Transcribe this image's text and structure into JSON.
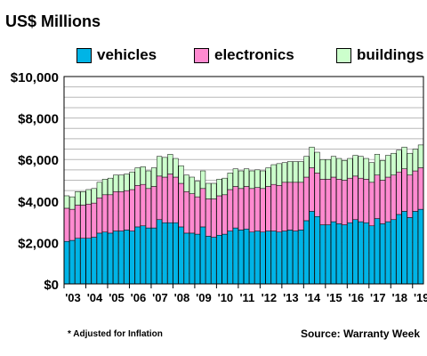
{
  "title": "US$ Millions",
  "legend": [
    {
      "key": "vehicles",
      "label": "vehicles",
      "color": "#00b4e6"
    },
    {
      "key": "electronics",
      "label": "electronics",
      "color": "#ff8ad0"
    },
    {
      "key": "buildings",
      "label": "buildings",
      "color": "#ccffcc"
    }
  ],
  "footnote": "* Adjusted for Inflation",
  "source": "Source: Warranty Week",
  "chart_data": {
    "type": "bar",
    "stacked": true,
    "title": "US$ Millions",
    "xlabel": "",
    "ylabel": "",
    "ylim": [
      0,
      10000
    ],
    "yticks": [
      0,
      2000,
      4000,
      6000,
      8000,
      10000
    ],
    "ytick_labels": [
      "$0",
      "$2,000",
      "$4,000",
      "$6,000",
      "$8,000",
      "$10,000"
    ],
    "grid": true,
    "legend_position": "top",
    "periods_per_year": 4,
    "year_labels": [
      "'03",
      "'04",
      "'05",
      "'06",
      "'07",
      "'08",
      "'09",
      "'10",
      "'11",
      "'12",
      "'13",
      "'14",
      "'15",
      "'16",
      "'17",
      "'18",
      "'19"
    ],
    "series": [
      {
        "name": "vehicles",
        "color": "#00b4e6",
        "values": [
          2050,
          2100,
          2200,
          2200,
          2200,
          2250,
          2450,
          2500,
          2450,
          2550,
          2550,
          2600,
          2550,
          2750,
          2800,
          2700,
          2700,
          3100,
          2950,
          2950,
          2950,
          2750,
          2450,
          2450,
          2400,
          2750,
          2300,
          2250,
          2350,
          2400,
          2550,
          2700,
          2600,
          2650,
          2500,
          2550,
          2500,
          2550,
          2550,
          2500,
          2550,
          2600,
          2550,
          2600,
          3050,
          3500,
          3250,
          2850,
          2850,
          3000,
          2900,
          2850,
          2950,
          3100,
          3000,
          2950,
          2800,
          3150,
          2900,
          3000,
          3100,
          3350,
          3500,
          3200,
          3500,
          3600
        ]
      },
      {
        "name": "electronics",
        "color": "#ff8ad0",
        "values": [
          1600,
          1500,
          1600,
          1600,
          1650,
          1650,
          1700,
          1800,
          1850,
          1900,
          1900,
          1900,
          2000,
          2000,
          2000,
          1900,
          2000,
          2100,
          2200,
          2350,
          2200,
          2100,
          2000,
          1900,
          1800,
          1850,
          1800,
          1850,
          1900,
          1900,
          2000,
          2000,
          2000,
          2050,
          2100,
          2100,
          2100,
          2150,
          2250,
          2250,
          2350,
          2300,
          2350,
          2300,
          2100,
          2100,
          2100,
          2200,
          2200,
          2150,
          2150,
          2150,
          2150,
          2100,
          2100,
          2100,
          2100,
          2100,
          2100,
          2150,
          2150,
          2050,
          2050,
          2050,
          1950,
          2000
        ]
      },
      {
        "name": "buildings",
        "color": "#ccffcc",
        "values": [
          600,
          600,
          650,
          650,
          700,
          700,
          750,
          750,
          800,
          800,
          800,
          800,
          850,
          850,
          850,
          850,
          900,
          950,
          950,
          950,
          900,
          850,
          800,
          800,
          750,
          850,
          750,
          750,
          800,
          800,
          800,
          850,
          850,
          850,
          850,
          850,
          850,
          900,
          950,
          1050,
          950,
          1000,
          1000,
          1000,
          1000,
          1000,
          1000,
          950,
          950,
          1000,
          1000,
          950,
          950,
          1000,
          1050,
          1000,
          950,
          1000,
          950,
          1050,
          1050,
          1050,
          1050,
          1050,
          1050,
          1100
        ]
      }
    ]
  }
}
